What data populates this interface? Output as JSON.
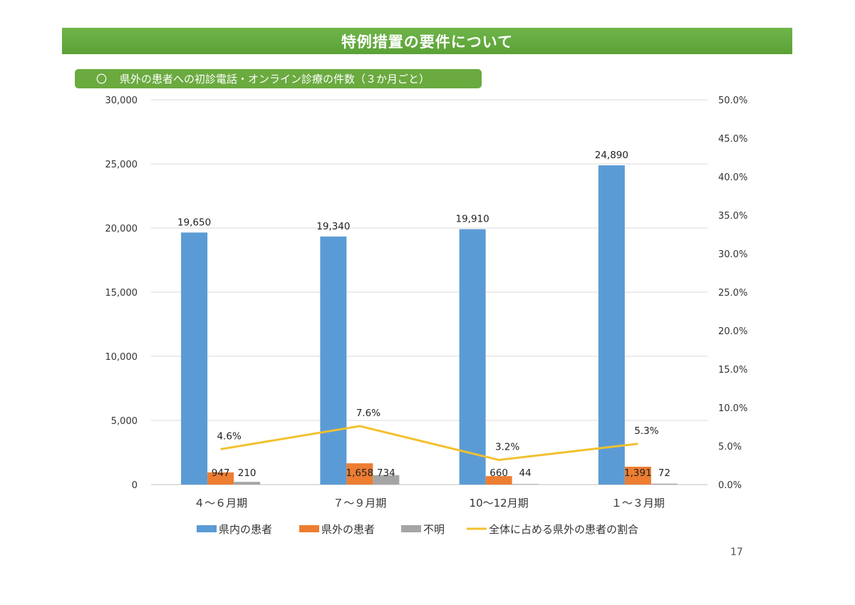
{
  "page": {
    "title": "特例措置の要件について",
    "subtitle_marker": "〇",
    "subtitle": "県外の患者への初診電話・オンライン診療の件数（３か月ごと）",
    "page_number": "17"
  },
  "chart_data": {
    "type": "bar",
    "categories": [
      "４～６月期",
      "７～９月期",
      "10～12月期",
      "１～３月期"
    ],
    "series": [
      {
        "name": "県内の患者",
        "type": "bar",
        "axis": "left",
        "color": "#5b9bd5",
        "values": [
          19650,
          19340,
          19910,
          24890
        ],
        "labels": [
          "19,650",
          "19,340",
          "19,910",
          "24,890"
        ]
      },
      {
        "name": "県外の患者",
        "type": "bar",
        "axis": "left",
        "color": "#ed7d31",
        "values": [
          947,
          1658,
          660,
          1391
        ],
        "labels": [
          "947",
          "1,658",
          "660",
          "1,391"
        ]
      },
      {
        "name": "不明",
        "type": "bar",
        "axis": "left",
        "color": "#a5a5a5",
        "values": [
          210,
          734,
          44,
          72
        ],
        "labels": [
          "210",
          "734",
          "44",
          "72"
        ]
      },
      {
        "name": "全体に占める県外の患者の割合",
        "type": "line",
        "axis": "right",
        "color": "#f2c12e",
        "values": [
          4.6,
          7.6,
          3.2,
          5.3
        ],
        "labels": [
          "4.6%",
          "7.6%",
          "3.2%",
          "5.3%"
        ]
      }
    ],
    "y_left": {
      "range": [
        0,
        30000
      ],
      "ticks": [
        0,
        5000,
        10000,
        15000,
        20000,
        25000,
        30000
      ],
      "tick_labels": [
        "0",
        "5,000",
        "10,000",
        "15,000",
        "20,000",
        "25,000",
        "30,000"
      ]
    },
    "y_right": {
      "range": [
        0,
        50
      ],
      "ticks": [
        0,
        5,
        10,
        15,
        20,
        25,
        30,
        35,
        40,
        45,
        50
      ],
      "tick_labels": [
        "0.0%",
        "5.0%",
        "10.0%",
        "15.0%",
        "20.0%",
        "25.0%",
        "30.0%",
        "35.0%",
        "40.0%",
        "45.0%",
        "50.0%"
      ]
    },
    "grid": true,
    "legend_position": "bottom"
  }
}
